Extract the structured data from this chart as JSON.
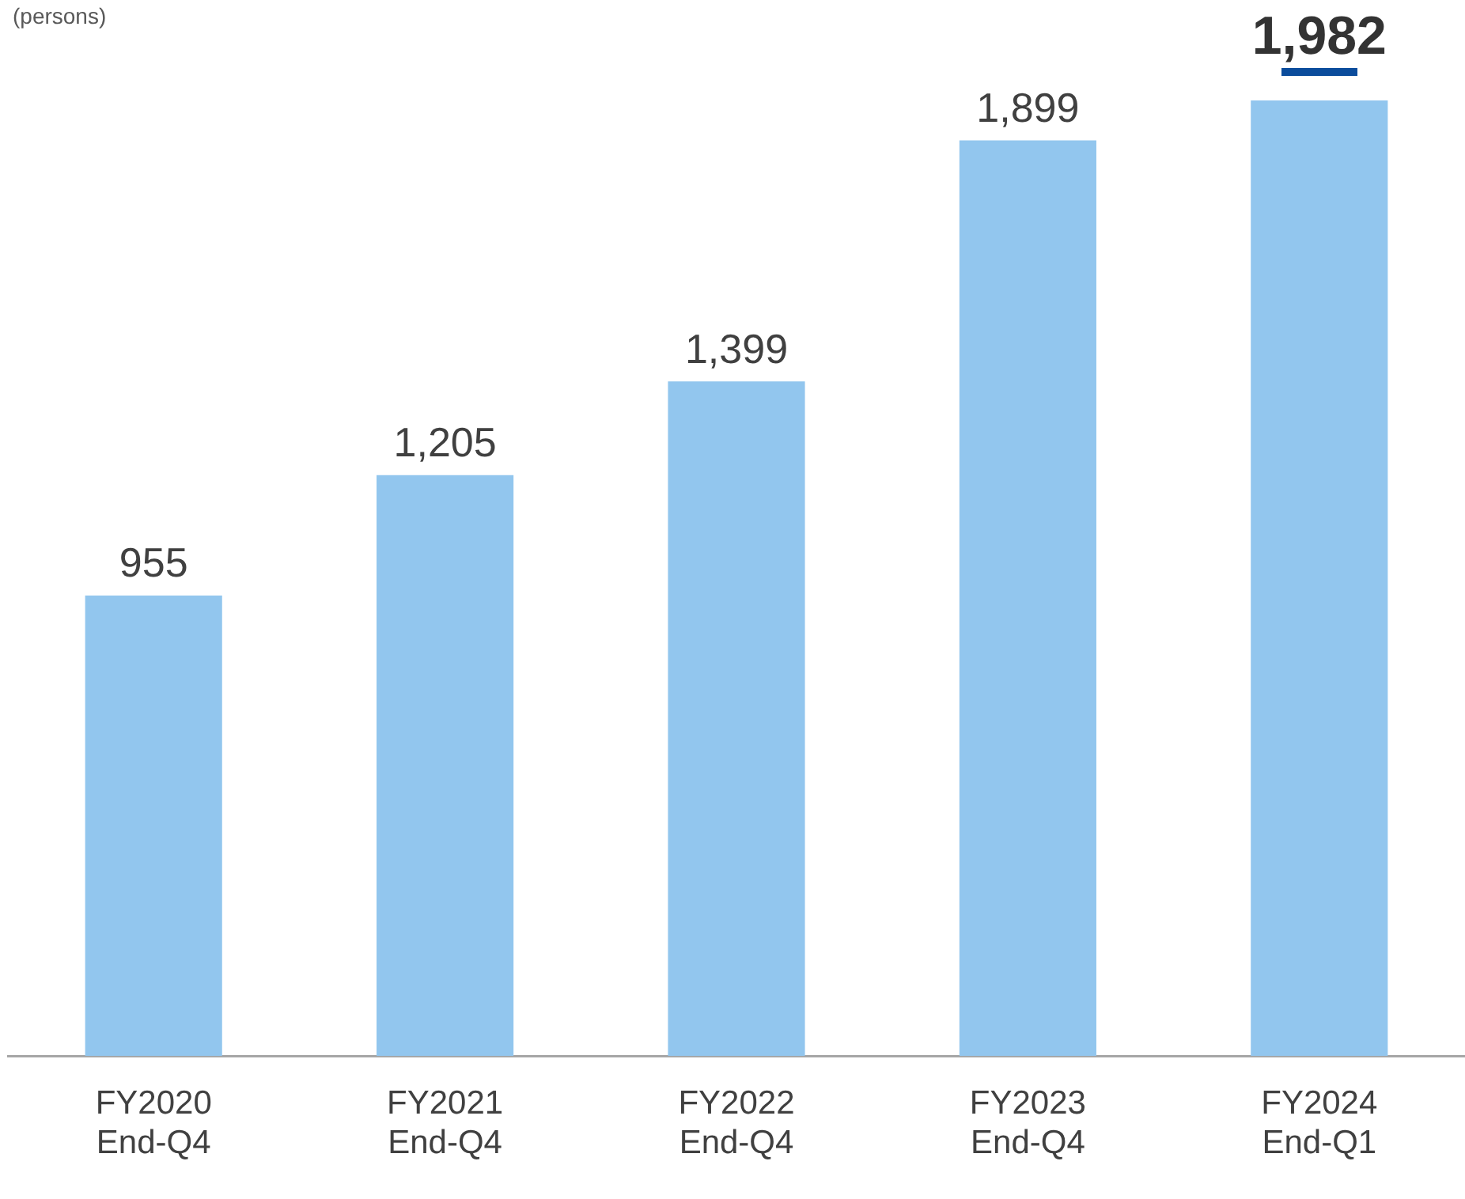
{
  "chart_data": {
    "type": "bar",
    "ylabel": "(persons)",
    "categories": [
      "FY2020\nEnd-Q4",
      "FY2021\nEnd-Q4",
      "FY2022\nEnd-Q4",
      "FY2023\nEnd-Q4",
      "FY2024\nEnd-Q1"
    ],
    "values": [
      955,
      1205,
      1399,
      1899,
      1982
    ],
    "color": "#92c6ee",
    "value_labels": [
      "955",
      "1,205",
      "1,399",
      "1,899",
      "1,982"
    ],
    "grid": false,
    "legend": false
  }
}
